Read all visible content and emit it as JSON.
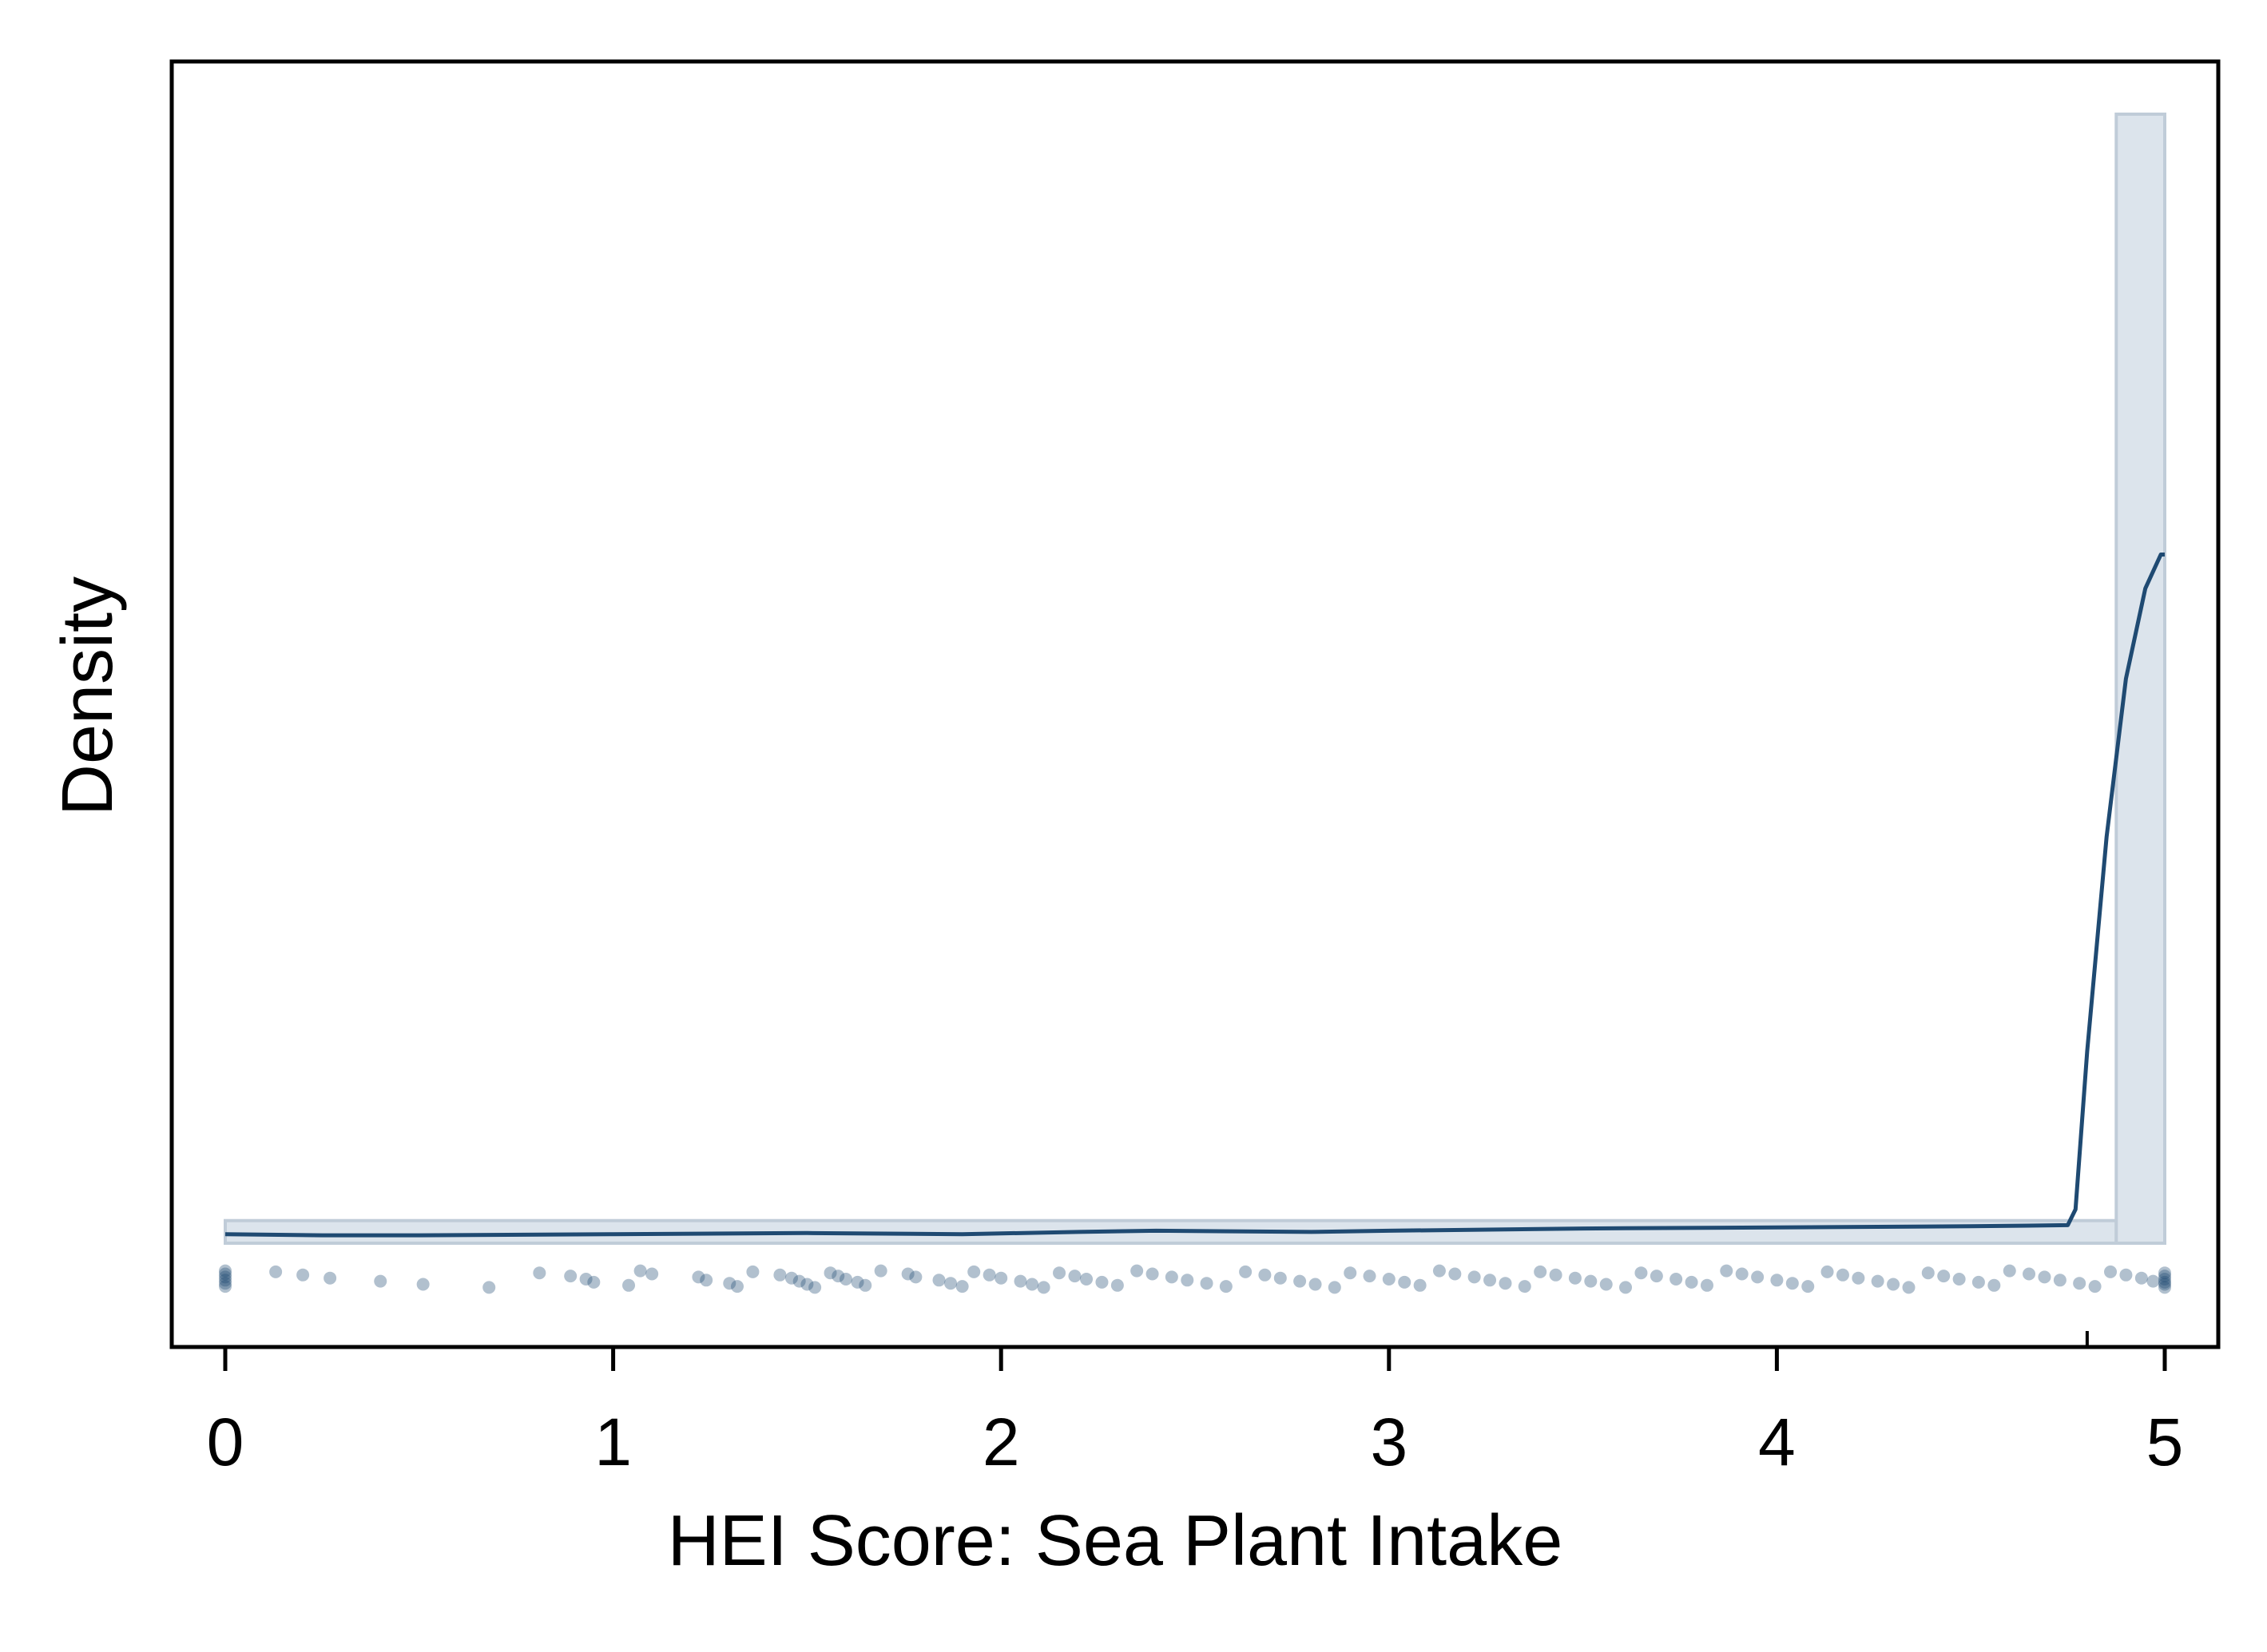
{
  "chart_data": {
    "type": "histogram",
    "xlabel": "HEI Score: Sea Plant Intake",
    "ylabel": "Density",
    "xlim": [
      0,
      5
    ],
    "x_ticks": [
      {
        "value": 0,
        "label": "0"
      },
      {
        "value": 1,
        "label": "1"
      },
      {
        "value": 2,
        "label": "2"
      },
      {
        "value": 3,
        "label": "3"
      },
      {
        "value": 4,
        "label": "4"
      },
      {
        "value": 5,
        "label": "5"
      }
    ],
    "y_ticks_shown": false,
    "grid": false,
    "legend": "none",
    "histogram": {
      "bins": [
        {
          "x0": 0.0,
          "x1": 4.875,
          "density": 0.02
        },
        {
          "x0": 4.875,
          "x1": 5.0,
          "density": 1.0
        }
      ],
      "fill_color": "#dce4ec",
      "edge_color": "#c0ccd8"
    },
    "density_curve": {
      "x": [
        0.0,
        0.25,
        0.5,
        1.0,
        1.5,
        1.9,
        2.2,
        2.4,
        2.8,
        3.0,
        3.5,
        4.0,
        4.5,
        4.75,
        4.77,
        4.8,
        4.85,
        4.9,
        4.95,
        4.99,
        5.0
      ],
      "y": [
        0.008,
        0.007,
        0.007,
        0.008,
        0.009,
        0.008,
        0.01,
        0.011,
        0.01,
        0.011,
        0.013,
        0.014,
        0.015,
        0.016,
        0.03,
        0.17,
        0.36,
        0.5,
        0.58,
        0.61,
        0.61
      ],
      "color": "#1f4a72"
    },
    "rug": {
      "color": "#1f4a72",
      "opacity": 0.35,
      "points": [
        0,
        0,
        0,
        0,
        0,
        0,
        0.13,
        0.2,
        0.27,
        0.4,
        0.51,
        0.68,
        0.81,
        0.89,
        0.93,
        0.95,
        1.04,
        1.07,
        1.1,
        1.22,
        1.24,
        1.3,
        1.32,
        1.36,
        1.43,
        1.46,
        1.48,
        1.5,
        1.52,
        1.56,
        1.58,
        1.6,
        1.63,
        1.65,
        1.69,
        1.76,
        1.78,
        1.84,
        1.87,
        1.9,
        1.93,
        1.97,
        2.0,
        2.05,
        2.08,
        2.11,
        2.15,
        2.19,
        2.22,
        2.26,
        2.3,
        2.35,
        2.39,
        2.44,
        2.48,
        2.53,
        2.58,
        2.63,
        2.68,
        2.72,
        2.77,
        2.81,
        2.86,
        2.9,
        2.95,
        3.0,
        3.04,
        3.08,
        3.13,
        3.17,
        3.22,
        3.26,
        3.3,
        3.35,
        3.39,
        3.43,
        3.48,
        3.52,
        3.56,
        3.61,
        3.65,
        3.69,
        3.74,
        3.78,
        3.82,
        3.87,
        3.91,
        3.95,
        4.0,
        4.04,
        4.08,
        4.13,
        4.17,
        4.21,
        4.26,
        4.3,
        4.34,
        4.39,
        4.43,
        4.47,
        4.52,
        4.56,
        4.6,
        4.65,
        4.69,
        4.73,
        4.78,
        4.82,
        4.86,
        4.9,
        4.94,
        4.97,
        5.0,
        5.0,
        5.0,
        5.0,
        5.0,
        5.0
      ]
    },
    "marker_tick_x": 4.8
  }
}
